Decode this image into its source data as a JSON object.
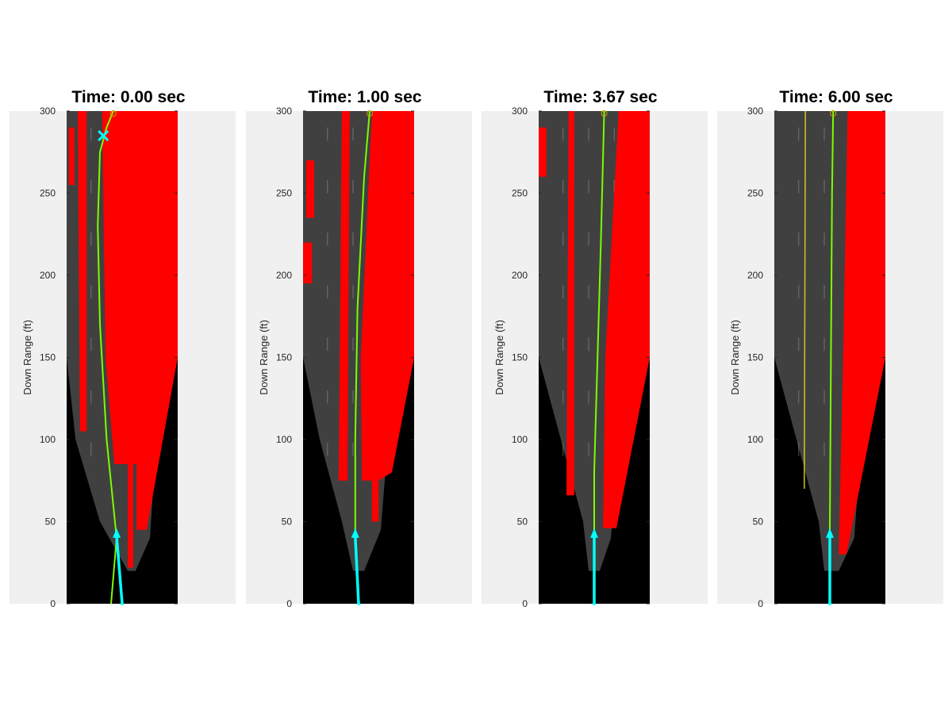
{
  "figure": {
    "background": "#ffffff"
  },
  "style": {
    "panel_bg": "#f0f0f0",
    "road": "#404040",
    "offroad": "#000000",
    "occupied": "#ff0000",
    "path": "#7cfc00",
    "ego": "#00ffff",
    "alt_path": "#d4c420"
  },
  "chart_data": [
    {
      "type": "line",
      "title": "Time: 0.00 sec",
      "xlabel": "",
      "ylabel": "Down Range (ft)",
      "ylim": [
        0,
        300
      ],
      "yticks": [
        0,
        50,
        100,
        150,
        200,
        250,
        300
      ],
      "series": [
        {
          "values": [
            [
              0.4,
              0
            ],
            [
              0.45,
              40
            ],
            [
              0.36,
              100
            ],
            [
              0.3,
              170
            ],
            [
              0.28,
              230
            ],
            [
              0.3,
              275
            ],
            [
              0.36,
              290
            ],
            [
              0.42,
              300
            ]
          ]
        }
      ]
    },
    {
      "type": "line",
      "title": "Time: 1.00 sec",
      "xlabel": "",
      "ylabel": "Down Range (ft)",
      "ylim": [
        0,
        300
      ],
      "yticks": [
        0,
        50,
        100,
        150,
        200,
        250,
        300
      ],
      "series": [
        {
          "values": [
            [
              0.5,
              0
            ],
            [
              0.47,
              45
            ],
            [
              0.47,
              100
            ],
            [
              0.49,
              180
            ],
            [
              0.55,
              260
            ],
            [
              0.6,
              300
            ]
          ]
        }
      ]
    },
    {
      "type": "line",
      "title": "Time: 3.67 sec",
      "xlabel": "",
      "ylabel": "Down Range (ft)",
      "ylim": [
        0,
        300
      ],
      "yticks": [
        0,
        50,
        100,
        150,
        200,
        250,
        300
      ],
      "series": [
        {
          "values": [
            [
              0.5,
              0
            ],
            [
              0.5,
              45
            ],
            [
              0.5,
              80
            ],
            [
              0.53,
              150
            ],
            [
              0.56,
              220
            ],
            [
              0.59,
              300
            ]
          ]
        }
      ]
    },
    {
      "type": "line",
      "title": "Time: 6.00 sec",
      "xlabel": "",
      "ylabel": "Down Range (ft)",
      "ylim": [
        0,
        300
      ],
      "yticks": [
        0,
        50,
        100,
        150,
        200,
        250,
        300
      ],
      "series": [
        {
          "values": [
            [
              0.5,
              0
            ],
            [
              0.5,
              45
            ],
            [
              0.51,
              150
            ],
            [
              0.52,
              250
            ],
            [
              0.53,
              300
            ]
          ]
        }
      ]
    }
  ]
}
